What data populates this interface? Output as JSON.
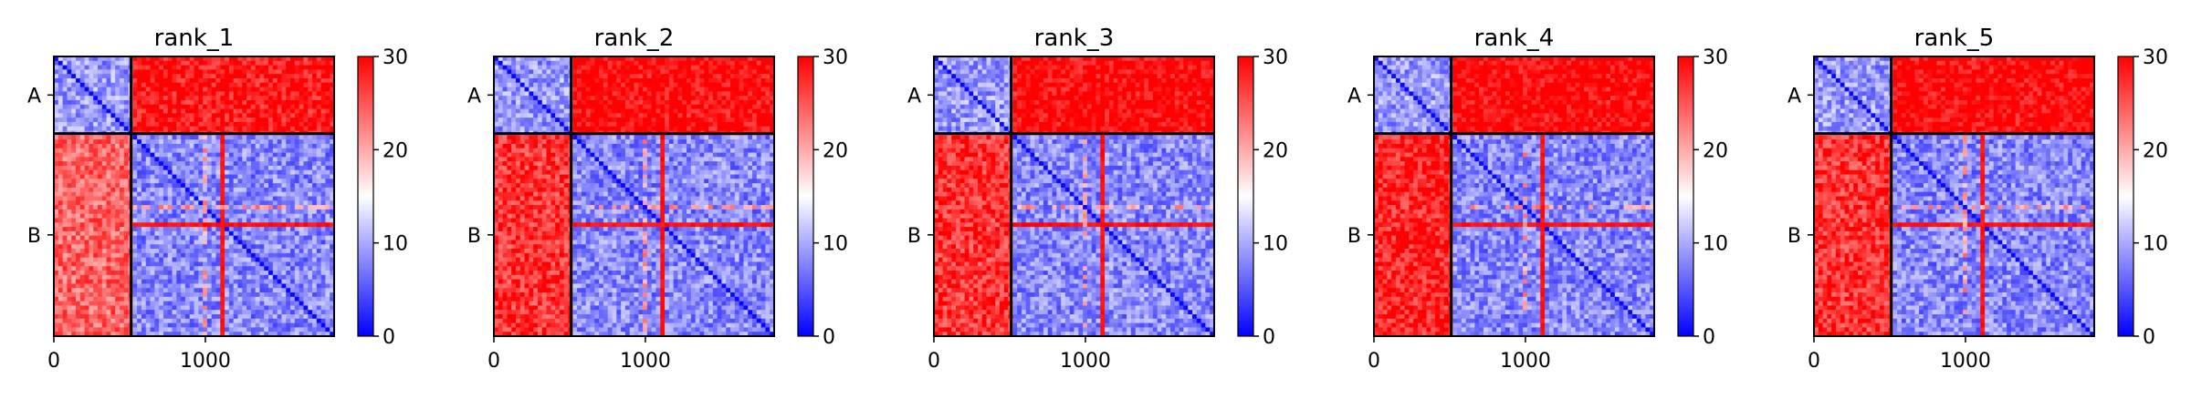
{
  "chart_data": [
    {
      "type": "heatmap",
      "title": "rank_1",
      "chains": [
        "A",
        "B"
      ],
      "chain_boundary": 510,
      "total_length": 1850,
      "xticks": [
        0,
        1000
      ],
      "colorbar": {
        "min": 0,
        "max": 30,
        "ticks": [
          0,
          10,
          20,
          30
        ],
        "colors": [
          "#0000ff",
          "#ffffff",
          "#ff0000"
        ]
      },
      "blocks": {
        "A_A": 9,
        "A_B": 29,
        "B_A": 24,
        "B_B": 8
      }
    },
    {
      "type": "heatmap",
      "title": "rank_2",
      "chains": [
        "A",
        "B"
      ],
      "chain_boundary": 510,
      "total_length": 1850,
      "xticks": [
        0,
        1000
      ],
      "colorbar": {
        "min": 0,
        "max": 30,
        "ticks": [
          0,
          10,
          20,
          30
        ],
        "colors": [
          "#0000ff",
          "#ffffff",
          "#ff0000"
        ]
      },
      "blocks": {
        "A_A": 9,
        "A_B": 30,
        "B_A": 27,
        "B_B": 8
      }
    },
    {
      "type": "heatmap",
      "title": "rank_3",
      "chains": [
        "A",
        "B"
      ],
      "chain_boundary": 510,
      "total_length": 1850,
      "xticks": [
        0,
        1000
      ],
      "colorbar": {
        "min": 0,
        "max": 30,
        "ticks": [
          0,
          10,
          20,
          30
        ],
        "colors": [
          "#0000ff",
          "#ffffff",
          "#ff0000"
        ]
      },
      "blocks": {
        "A_A": 9,
        "A_B": 30,
        "B_A": 27,
        "B_B": 8
      }
    },
    {
      "type": "heatmap",
      "title": "rank_4",
      "chains": [
        "A",
        "B"
      ],
      "chain_boundary": 510,
      "total_length": 1850,
      "xticks": [
        0,
        1000
      ],
      "colorbar": {
        "min": 0,
        "max": 30,
        "ticks": [
          0,
          10,
          20,
          30
        ],
        "colors": [
          "#0000ff",
          "#ffffff",
          "#ff0000"
        ]
      },
      "blocks": {
        "A_A": 9,
        "A_B": 30,
        "B_A": 28,
        "B_B": 8
      }
    },
    {
      "type": "heatmap",
      "title": "rank_5",
      "chains": [
        "A",
        "B"
      ],
      "chain_boundary": 510,
      "total_length": 1850,
      "xticks": [
        0,
        1000
      ],
      "colorbar": {
        "min": 0,
        "max": 30,
        "ticks": [
          0,
          10,
          20,
          30
        ],
        "colors": [
          "#0000ff",
          "#ffffff",
          "#ff0000"
        ]
      },
      "blocks": {
        "A_A": 9,
        "A_B": 30,
        "B_A": 27,
        "B_B": 8
      }
    }
  ]
}
